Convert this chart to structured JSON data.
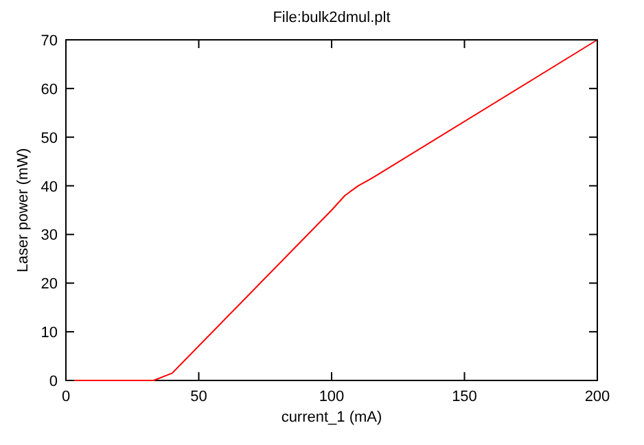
{
  "chart_data": {
    "type": "line",
    "title": "File:bulk2dmul.plt",
    "xlabel": "current_1 (mA)",
    "ylabel": "Laser power (mW)",
    "x": [
      0,
      33,
      40,
      45,
      100,
      105,
      110,
      115,
      200
    ],
    "series": [
      {
        "color": "#ff0000",
        "values": [
          0,
          0,
          1.5,
          4.3,
          35,
          38,
          40,
          41.5,
          70
        ]
      }
    ],
    "xlim": [
      0,
      200
    ],
    "xticks": [
      0,
      50,
      100,
      150,
      200
    ],
    "ylim": [
      0,
      70
    ],
    "yticks": [
      0,
      10,
      20,
      30,
      40,
      50,
      60,
      70
    ],
    "grid": false
  }
}
